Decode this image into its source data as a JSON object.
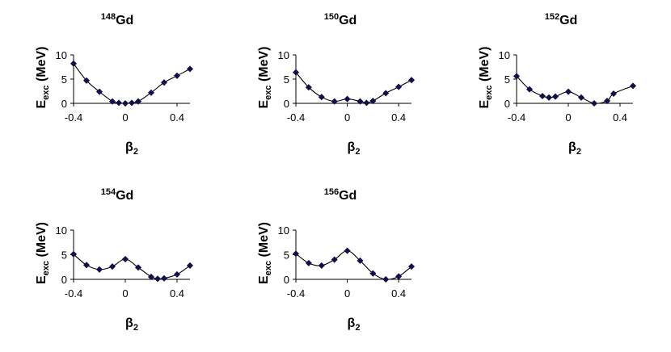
{
  "chart_data": [
    {
      "type": "line",
      "title": {
        "sup": "148",
        "main": "Gd"
      },
      "xlabel": {
        "main": "β",
        "sub": "2"
      },
      "ylabel": {
        "main": "E",
        "sub": "exc",
        "rest": " (MeV)"
      },
      "xlim": [
        -0.4,
        0.5
      ],
      "ylim": [
        0,
        10
      ],
      "xticks": [
        "-0.4",
        "0",
        "0.4"
      ],
      "yticks": [
        "0",
        "5",
        "10"
      ],
      "series": [
        {
          "x": [
            -0.4,
            -0.3,
            -0.2,
            -0.1,
            -0.05,
            0.0,
            0.05,
            0.1,
            0.2,
            0.3,
            0.4,
            0.5
          ],
          "y": [
            8.2,
            4.7,
            2.4,
            0.4,
            0.1,
            0.0,
            0.1,
            0.4,
            2.2,
            4.3,
            5.7,
            7.1
          ]
        }
      ]
    },
    {
      "type": "line",
      "title": {
        "sup": "150",
        "main": "Gd"
      },
      "xlabel": {
        "main": "β",
        "sub": "2"
      },
      "ylabel": {
        "main": "E",
        "sub": "exc",
        "rest": " (MeV)"
      },
      "xlim": [
        -0.4,
        0.5
      ],
      "ylim": [
        0,
        10
      ],
      "xticks": [
        "-0.4",
        "0",
        "0.4"
      ],
      "yticks": [
        "0",
        "5",
        "10"
      ],
      "series": [
        {
          "x": [
            -0.4,
            -0.3,
            -0.2,
            -0.1,
            0.0,
            0.1,
            0.15,
            0.2,
            0.3,
            0.4,
            0.5
          ],
          "y": [
            6.4,
            3.3,
            1.3,
            0.4,
            0.9,
            0.4,
            0.1,
            0.5,
            2.1,
            3.4,
            4.8
          ]
        }
      ]
    },
    {
      "type": "line",
      "title": {
        "sup": "152",
        "main": "Gd"
      },
      "xlabel": {
        "main": "β",
        "sub": "2"
      },
      "ylabel": {
        "main": "E",
        "sub": "exc",
        "rest": " (MeV)"
      },
      "xlim": [
        -0.4,
        0.5
      ],
      "ylim": [
        0,
        10
      ],
      "xticks": [
        "-0.4",
        "0",
        "0.4"
      ],
      "yticks": [
        "0",
        "5",
        "10"
      ],
      "series": [
        {
          "x": [
            -0.4,
            -0.3,
            -0.2,
            -0.15,
            -0.1,
            0.0,
            0.1,
            0.2,
            0.3,
            0.35,
            0.5
          ],
          "y": [
            5.6,
            2.9,
            1.5,
            1.2,
            1.4,
            2.4,
            1.2,
            0.0,
            0.5,
            2.0,
            3.6
          ]
        }
      ]
    },
    {
      "type": "line",
      "title": {
        "sup": "154",
        "main": "Gd"
      },
      "xlabel": {
        "main": "β",
        "sub": "2"
      },
      "ylabel": {
        "main": "E",
        "sub": "exc",
        "rest": " (MeV)"
      },
      "xlim": [
        -0.4,
        0.5
      ],
      "ylim": [
        0,
        10
      ],
      "xticks": [
        "-0.4",
        "0",
        "0.4"
      ],
      "yticks": [
        "0",
        "5",
        "10"
      ],
      "series": [
        {
          "x": [
            -0.4,
            -0.3,
            -0.2,
            -0.1,
            0.0,
            0.1,
            0.2,
            0.25,
            0.3,
            0.4,
            0.5
          ],
          "y": [
            5.1,
            2.9,
            2.0,
            2.6,
            4.1,
            2.4,
            0.5,
            0.1,
            0.2,
            1.0,
            2.8
          ]
        }
      ]
    },
    {
      "type": "line",
      "title": {
        "sup": "156",
        "main": "Gd"
      },
      "xlabel": {
        "main": "β",
        "sub": "2"
      },
      "ylabel": {
        "main": "E",
        "sub": "exc",
        "rest": " (MeV)"
      },
      "xlim": [
        -0.4,
        0.5
      ],
      "ylim": [
        0,
        10
      ],
      "xticks": [
        "-0.4",
        "0",
        "0.4"
      ],
      "yticks": [
        "0",
        "5",
        "10"
      ],
      "series": [
        {
          "x": [
            -0.4,
            -0.3,
            -0.2,
            -0.1,
            0.0,
            0.1,
            0.2,
            0.3,
            0.4,
            0.5
          ],
          "y": [
            5.2,
            3.3,
            2.8,
            4.0,
            5.8,
            3.8,
            1.2,
            0.0,
            0.6,
            2.6
          ]
        }
      ]
    }
  ],
  "colors": {
    "marker": "#0f0f4a",
    "line": "#000000",
    "axis": "#000000"
  }
}
